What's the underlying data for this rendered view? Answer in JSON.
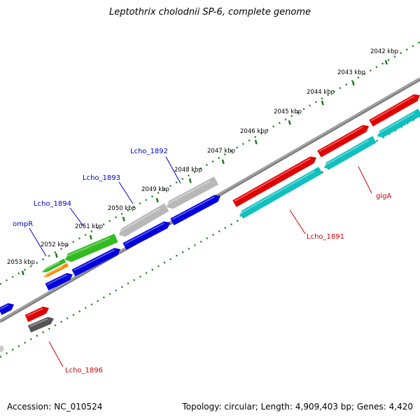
{
  "title": "Leptothrix cholodnii SP-6, complete genome",
  "footer": {
    "accession": "Accession: NC_010524",
    "topology": "Topology: circular; Length: 4,909,403 bp; Genes: 4,420"
  },
  "ticks": [
    "2042 kbp",
    "2043 kbp",
    "2044 kbp",
    "2045 kbp",
    "2046 kbp",
    "2047 kbp",
    "2048 kbp",
    "2049 kbp",
    "2050 kbp",
    "2051 kbp",
    "2052 kbp",
    "2053 kbp"
  ],
  "gene_labels": [
    {
      "name": "Lcho_1892",
      "color": "#0000cc"
    },
    {
      "name": "Lcho_1893",
      "color": "#0000cc"
    },
    {
      "name": "Lcho_1894",
      "color": "#0000cc"
    },
    {
      "name": "ompR",
      "color": "#0000cc"
    },
    {
      "name": "glgA",
      "color": "#cc0000"
    },
    {
      "name": "Lcho_1891",
      "color": "#cc0000"
    },
    {
      "name": "Lcho_1896",
      "color": "#cc0000"
    }
  ],
  "colors": {
    "tick_dots": "#1a7a1a",
    "backbone": "#808080",
    "red": "#e00000",
    "cyan": "#10c0c0",
    "blue": "#0000dd",
    "gray": "#b8b8b8",
    "green": "#33bb22",
    "orange": "#ff8800",
    "darkgray": "#555555"
  }
}
